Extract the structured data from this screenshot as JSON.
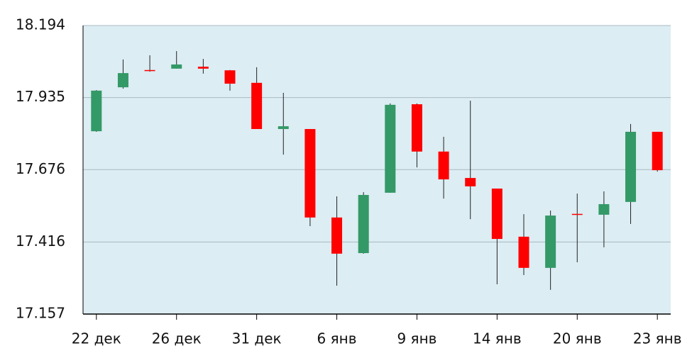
{
  "chart_data": {
    "type": "candlestick",
    "categories": [
      "22 дек",
      null,
      null,
      "26 дек",
      null,
      null,
      "31 дек",
      null,
      null,
      "6 янв",
      null,
      null,
      "9 янв",
      null,
      null,
      "14 янв",
      null,
      null,
      "20 янв",
      null,
      null,
      "23 янв"
    ],
    "open": [
      17.814,
      17.972,
      18.034,
      18.039,
      18.046,
      18.033,
      17.988,
      17.822,
      17.822,
      17.504,
      17.376,
      17.593,
      17.911,
      17.741,
      17.646,
      17.608,
      17.435,
      17.323,
      17.517,
      17.514,
      17.56,
      17.812
    ],
    "high": [
      17.962,
      18.072,
      18.087,
      18.102,
      18.074,
      18.034,
      18.044,
      17.952,
      17.822,
      17.58,
      17.595,
      17.914,
      17.914,
      17.794,
      17.924,
      17.608,
      17.516,
      17.529,
      17.59,
      17.598,
      17.84,
      17.812
    ],
    "low": [
      17.812,
      17.967,
      18.028,
      18.039,
      18.021,
      17.96,
      17.822,
      17.73,
      17.473,
      17.259,
      17.374,
      17.593,
      17.684,
      17.572,
      17.498,
      17.264,
      17.297,
      17.244,
      17.343,
      17.397,
      17.481,
      17.669
    ],
    "close": [
      17.96,
      18.023,
      18.033,
      18.054,
      18.039,
      17.985,
      17.822,
      17.832,
      17.504,
      17.374,
      17.585,
      17.909,
      17.741,
      17.641,
      17.616,
      17.427,
      17.323,
      17.511,
      17.516,
      17.552,
      17.812,
      17.674
    ],
    "up_color": "#339966",
    "down_color": "#ff0000",
    "ylim": [
      17.157,
      18.194
    ],
    "yticks": [
      17.157,
      17.416,
      17.676,
      17.935,
      18.194
    ],
    "grid": true
  }
}
